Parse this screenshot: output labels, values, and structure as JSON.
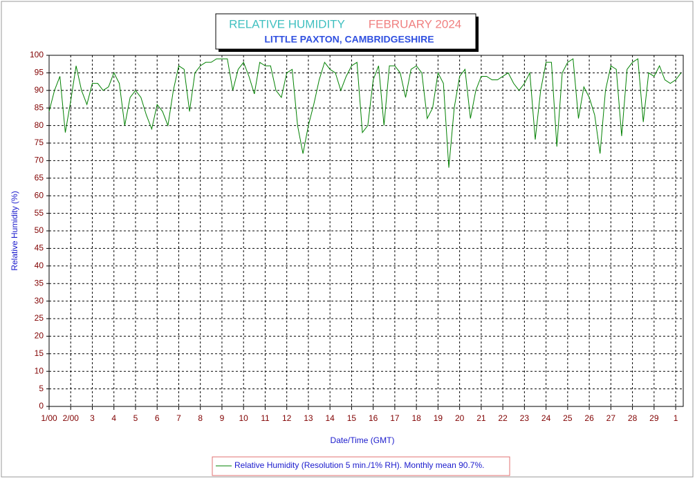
{
  "chart_data": {
    "type": "line",
    "title": "RELATIVE HUMIDITY",
    "title_period": "FEBRUARY 2024",
    "subtitle": "LITTLE PAXTON, CAMBRIDGESHIRE",
    "x_label": "Date/Time (GMT)",
    "y_label": "Relative Humidity (%)",
    "x": [
      1,
      1.25,
      1.5,
      1.75,
      2,
      2.25,
      2.5,
      2.75,
      3,
      3.25,
      3.5,
      3.75,
      4,
      4.25,
      4.5,
      4.75,
      5,
      5.25,
      5.5,
      5.75,
      6,
      6.25,
      6.5,
      6.75,
      7,
      7.25,
      7.5,
      7.75,
      8,
      8.25,
      8.5,
      8.75,
      9,
      9.25,
      9.5,
      9.75,
      10,
      10.25,
      10.5,
      10.75,
      11,
      11.25,
      11.5,
      11.75,
      12,
      12.25,
      12.5,
      12.75,
      13,
      13.25,
      13.5,
      13.75,
      14,
      14.25,
      14.5,
      14.75,
      15,
      15.25,
      15.5,
      15.75,
      16,
      16.25,
      16.5,
      16.75,
      17,
      17.25,
      17.5,
      17.75,
      18,
      18.25,
      18.5,
      18.75,
      19,
      19.25,
      19.5,
      19.75,
      20,
      20.25,
      20.5,
      20.75,
      21,
      21.25,
      21.5,
      21.75,
      22,
      22.25,
      22.5,
      22.75,
      23,
      23.25,
      23.5,
      23.75,
      24,
      24.25,
      24.5,
      24.75,
      25,
      25.25,
      25.5,
      25.75,
      26,
      26.25,
      26.5,
      26.75,
      27,
      27.25,
      27.5,
      27.75,
      28,
      28.25,
      28.5,
      28.75,
      29,
      29.25,
      29.5,
      29.75,
      30,
      30.25
    ],
    "series": [
      {
        "name": "Relative Humidity (Resolution 5 min./1% RH). Monthly mean 90.7%.",
        "color": "#008000",
        "values": [
          84,
          90,
          94,
          78,
          87,
          97,
          90,
          86,
          92,
          92,
          90,
          91,
          95,
          92,
          80,
          88,
          90,
          88,
          83,
          79,
          86,
          84,
          80,
          90,
          97,
          96,
          84,
          95,
          97,
          98,
          98,
          99,
          99,
          99,
          90,
          96,
          98,
          94,
          89,
          98,
          97,
          97,
          90,
          88,
          95,
          96,
          80,
          72,
          80,
          86,
          93,
          98,
          96,
          95,
          90,
          94,
          97,
          98,
          78,
          80,
          93,
          97,
          80,
          97,
          97,
          95,
          88,
          96,
          97,
          95,
          82,
          85,
          95,
          92,
          68,
          85,
          94,
          96,
          82,
          90,
          94,
          94,
          93,
          93,
          94,
          95,
          92,
          90,
          92,
          95,
          76,
          90,
          98,
          98,
          74,
          95,
          98,
          99,
          82,
          91,
          88,
          83,
          72,
          90,
          97,
          96,
          77,
          96,
          98,
          99,
          81,
          95,
          94,
          97,
          93,
          92,
          93,
          95
        ]
      }
    ],
    "xlim": [
      1,
      30.35
    ],
    "ylim": [
      0,
      100
    ],
    "xticks": [
      {
        "value": 1,
        "label": "1/00"
      },
      {
        "value": 2,
        "label": "2/00"
      },
      3,
      4,
      5,
      6,
      7,
      8,
      9,
      10,
      11,
      12,
      13,
      14,
      15,
      16,
      17,
      18,
      19,
      20,
      21,
      22,
      23,
      24,
      25,
      26,
      27,
      28,
      29,
      {
        "value": 30,
        "label": "1"
      }
    ],
    "yticks": [
      0,
      5,
      10,
      15,
      20,
      25,
      30,
      35,
      40,
      45,
      50,
      55,
      60,
      65,
      70,
      75,
      80,
      85,
      90,
      95,
      100
    ],
    "grid": true
  }
}
